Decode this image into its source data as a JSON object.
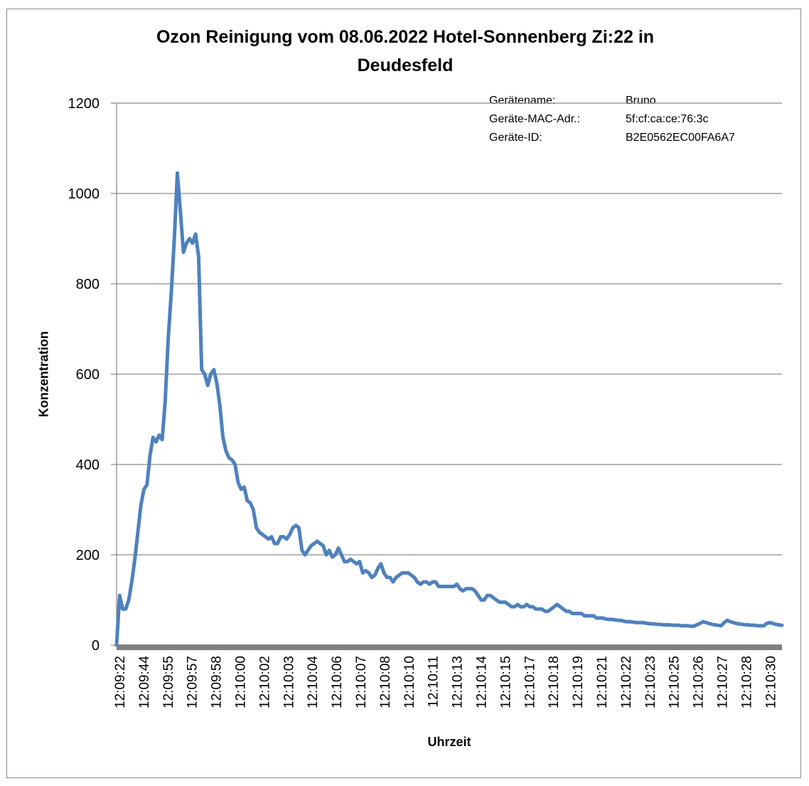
{
  "chart_data": {
    "type": "line",
    "title_line1": "Ozon Reinigung vom 08.06.2022 Hotel-Sonnenberg Zi:22 in",
    "title_line2": "Deudesfeld",
    "xlabel": "Uhrzeit",
    "ylabel": "Konzentration",
    "ylim": [
      0,
      1200
    ],
    "yticks": [
      0,
      200,
      400,
      600,
      800,
      1000,
      1200
    ],
    "grid": true,
    "line_color": "#4f81bd",
    "x_tick_labels": [
      "12:09:22",
      "12:09:44",
      "12:09:55",
      "12:09:57",
      "12:09:58",
      "12:10:00",
      "12:10:02",
      "12:10:03",
      "12:10:04",
      "12:10:06",
      "12:10:07",
      "12:10:08",
      "12:10:10",
      "12:10:11",
      "12:10:13",
      "12:10:14",
      "12:10:15",
      "12:10:17",
      "12:10:18",
      "12:10:19",
      "12:10:21",
      "12:10:22",
      "12:10:23",
      "12:10:25",
      "12:10:26",
      "12:10:27",
      "12:10:28",
      "12:10:30"
    ],
    "series": [
      {
        "values": [
          0,
          110,
          80,
          80,
          100,
          140,
          190,
          250,
          310,
          345,
          355,
          420,
          460,
          450,
          465,
          455,
          540,
          680,
          780,
          900,
          1045,
          960,
          870,
          890,
          900,
          890,
          910,
          860,
          610,
          600,
          575,
          600,
          610,
          580,
          530,
          460,
          430,
          415,
          410,
          400,
          360,
          345,
          350,
          320,
          315,
          300,
          260,
          250,
          245,
          240,
          235,
          240,
          225,
          225,
          240,
          240,
          235,
          245,
          260,
          265,
          260,
          210,
          200,
          210,
          220,
          225,
          230,
          225,
          220,
          200,
          210,
          195,
          200,
          215,
          200,
          185,
          185,
          190,
          185,
          180,
          185,
          160,
          165,
          160,
          150,
          155,
          170,
          180,
          160,
          150,
          150,
          140,
          150,
          155,
          160,
          160,
          160,
          155,
          150,
          140,
          135,
          140,
          140,
          135,
          140,
          140,
          130,
          130,
          130,
          130,
          130,
          130,
          135,
          125,
          120,
          125,
          125,
          125,
          120,
          110,
          100,
          100,
          110,
          110,
          105,
          100,
          95,
          95,
          95,
          90,
          85,
          85,
          90,
          85,
          85,
          90,
          85,
          85,
          80,
          80,
          80,
          75,
          75,
          80,
          85,
          90,
          85,
          80,
          75,
          75,
          70,
          70,
          70,
          70,
          65,
          65,
          65,
          65,
          60,
          60,
          60,
          58,
          57,
          57,
          56,
          55,
          55,
          53,
          52,
          52,
          51,
          50,
          50,
          50,
          49,
          48,
          47,
          47,
          46,
          46,
          45,
          45,
          45,
          44,
          44,
          44,
          43,
          43,
          43,
          42,
          42,
          45,
          48,
          52,
          50,
          48,
          46,
          45,
          44,
          43,
          50,
          55,
          52,
          50,
          48,
          47,
          46,
          45,
          45,
          44,
          44,
          43,
          43,
          43,
          48,
          50,
          48,
          46,
          45,
          44
        ]
      }
    ]
  },
  "device_info": {
    "rows": [
      {
        "key": "Gerätename:",
        "value": "Bruno"
      },
      {
        "key": "Geräte-MAC-Adr.:",
        "value": "5f:cf:ca:ce:76:3c"
      },
      {
        "key": "Geräte-ID:",
        "value": "B2E0562EC00FA6A7"
      }
    ]
  }
}
